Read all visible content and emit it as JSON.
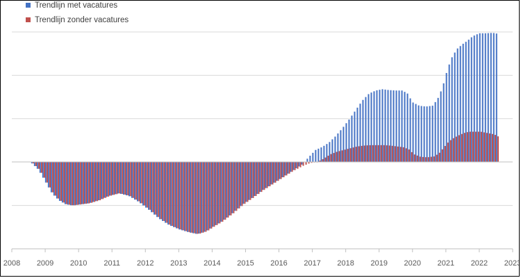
{
  "chart_data": {
    "type": "bar",
    "title": "",
    "xlabel": "",
    "ylabel": "",
    "x_ticks": [
      "2008",
      "2009",
      "2010",
      "2011",
      "2012",
      "2013",
      "2014",
      "2015",
      "2016",
      "2017",
      "2018",
      "2019",
      "2020",
      "2021",
      "2022",
      "2023"
    ],
    "x_range": [
      2008,
      2023
    ],
    "ylim": [
      -2,
      3
    ],
    "y_gridlines": [
      -2,
      -1,
      0,
      1,
      2,
      3
    ],
    "y_tick_labels_shown": false,
    "legend_position": "top-left",
    "grid": true,
    "series": [
      {
        "name": "Trendlijn met vacatures",
        "color": "#4472C4",
        "points": [
          [
            2008.6,
            -0.03
          ],
          [
            2008.8,
            -0.18
          ],
          [
            2009.0,
            -0.45
          ],
          [
            2009.2,
            -0.72
          ],
          [
            2009.4,
            -0.88
          ],
          [
            2009.6,
            -0.97
          ],
          [
            2009.8,
            -1.0
          ],
          [
            2010.0,
            -0.98
          ],
          [
            2010.3,
            -0.95
          ],
          [
            2010.6,
            -0.88
          ],
          [
            2010.9,
            -0.78
          ],
          [
            2011.2,
            -0.72
          ],
          [
            2011.5,
            -0.78
          ],
          [
            2011.8,
            -0.92
          ],
          [
            2012.1,
            -1.1
          ],
          [
            2012.4,
            -1.3
          ],
          [
            2012.7,
            -1.45
          ],
          [
            2013.0,
            -1.55
          ],
          [
            2013.3,
            -1.62
          ],
          [
            2013.55,
            -1.66
          ],
          [
            2013.8,
            -1.6
          ],
          [
            2014.0,
            -1.5
          ],
          [
            2014.3,
            -1.36
          ],
          [
            2014.6,
            -1.18
          ],
          [
            2014.9,
            -0.98
          ],
          [
            2015.2,
            -0.82
          ],
          [
            2015.5,
            -0.65
          ],
          [
            2015.8,
            -0.5
          ],
          [
            2016.1,
            -0.35
          ],
          [
            2016.4,
            -0.2
          ],
          [
            2016.7,
            -0.05
          ],
          [
            2016.9,
            0.12
          ],
          [
            2017.1,
            0.28
          ],
          [
            2017.3,
            0.35
          ],
          [
            2017.5,
            0.45
          ],
          [
            2017.7,
            0.6
          ],
          [
            2017.9,
            0.78
          ],
          [
            2018.1,
            0.98
          ],
          [
            2018.3,
            1.2
          ],
          [
            2018.5,
            1.42
          ],
          [
            2018.7,
            1.58
          ],
          [
            2018.9,
            1.65
          ],
          [
            2019.1,
            1.68
          ],
          [
            2019.3,
            1.66
          ],
          [
            2019.5,
            1.65
          ],
          [
            2019.7,
            1.65
          ],
          [
            2019.85,
            1.58
          ],
          [
            2020.0,
            1.38
          ],
          [
            2020.2,
            1.3
          ],
          [
            2020.4,
            1.28
          ],
          [
            2020.6,
            1.3
          ],
          [
            2020.75,
            1.45
          ],
          [
            2020.9,
            1.72
          ],
          [
            2021.05,
            2.15
          ],
          [
            2021.2,
            2.45
          ],
          [
            2021.35,
            2.62
          ],
          [
            2021.5,
            2.72
          ],
          [
            2021.65,
            2.8
          ],
          [
            2021.8,
            2.9
          ],
          [
            2022.0,
            2.97
          ],
          [
            2022.2,
            2.97
          ],
          [
            2022.4,
            2.98
          ],
          [
            2022.55,
            2.96
          ]
        ]
      },
      {
        "name": "Trendlijn zonder vacatures",
        "color": "#C0504D",
        "points": [
          [
            2008.6,
            -0.03
          ],
          [
            2008.8,
            -0.18
          ],
          [
            2009.0,
            -0.45
          ],
          [
            2009.2,
            -0.72
          ],
          [
            2009.4,
            -0.88
          ],
          [
            2009.6,
            -0.97
          ],
          [
            2009.8,
            -1.0
          ],
          [
            2010.0,
            -0.98
          ],
          [
            2010.3,
            -0.95
          ],
          [
            2010.6,
            -0.88
          ],
          [
            2010.9,
            -0.78
          ],
          [
            2011.2,
            -0.72
          ],
          [
            2011.5,
            -0.78
          ],
          [
            2011.8,
            -0.92
          ],
          [
            2012.1,
            -1.1
          ],
          [
            2012.4,
            -1.3
          ],
          [
            2012.7,
            -1.45
          ],
          [
            2013.0,
            -1.55
          ],
          [
            2013.3,
            -1.62
          ],
          [
            2013.55,
            -1.66
          ],
          [
            2013.8,
            -1.6
          ],
          [
            2014.0,
            -1.5
          ],
          [
            2014.3,
            -1.36
          ],
          [
            2014.6,
            -1.18
          ],
          [
            2014.9,
            -0.98
          ],
          [
            2015.2,
            -0.82
          ],
          [
            2015.5,
            -0.65
          ],
          [
            2015.8,
            -0.5
          ],
          [
            2016.1,
            -0.35
          ],
          [
            2016.4,
            -0.2
          ],
          [
            2016.7,
            -0.08
          ],
          [
            2016.9,
            -0.02
          ],
          [
            2017.1,
            0.0
          ],
          [
            2017.3,
            0.08
          ],
          [
            2017.5,
            0.18
          ],
          [
            2017.7,
            0.24
          ],
          [
            2017.9,
            0.28
          ],
          [
            2018.1,
            0.32
          ],
          [
            2018.3,
            0.36
          ],
          [
            2018.5,
            0.38
          ],
          [
            2018.7,
            0.39
          ],
          [
            2018.9,
            0.39
          ],
          [
            2019.1,
            0.39
          ],
          [
            2019.3,
            0.38
          ],
          [
            2019.5,
            0.36
          ],
          [
            2019.7,
            0.34
          ],
          [
            2019.85,
            0.29
          ],
          [
            2020.0,
            0.18
          ],
          [
            2020.2,
            0.12
          ],
          [
            2020.4,
            0.11
          ],
          [
            2020.6,
            0.13
          ],
          [
            2020.75,
            0.2
          ],
          [
            2020.9,
            0.34
          ],
          [
            2021.05,
            0.48
          ],
          [
            2021.2,
            0.56
          ],
          [
            2021.35,
            0.62
          ],
          [
            2021.5,
            0.67
          ],
          [
            2021.65,
            0.7
          ],
          [
            2021.8,
            0.7
          ],
          [
            2022.0,
            0.7
          ],
          [
            2022.2,
            0.67
          ],
          [
            2022.4,
            0.64
          ],
          [
            2022.55,
            0.58
          ]
        ]
      }
    ]
  }
}
